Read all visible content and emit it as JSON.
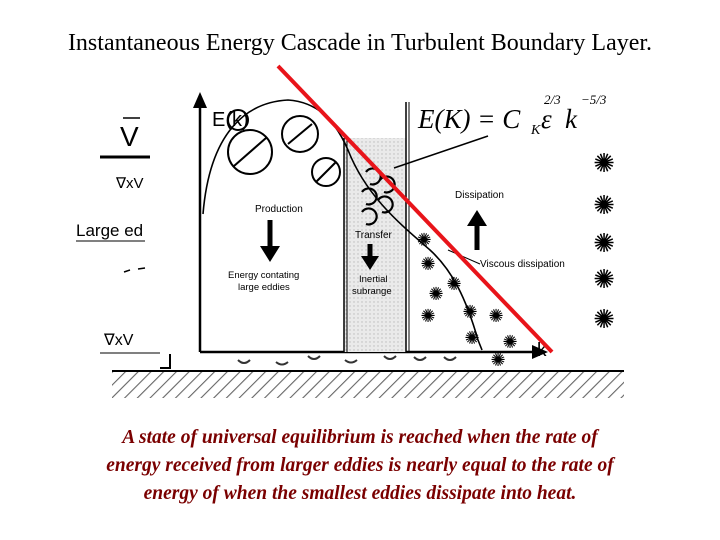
{
  "slide_title": "Instantaneous Energy Cascade in Turbulent Boundary Layer.",
  "diagram": {
    "y_axis_label": "E(k)",
    "x_axis_label": "k",
    "equation": {
      "lhs": "E(K) = C",
      "sub_k": "K",
      "epsilon": "ε",
      "eps_exponent": "2/3",
      "k_symbol": "k",
      "k_exponent": "−5/3"
    },
    "regions": {
      "production": "Production",
      "energy_containing_line1": "Energy contating",
      "energy_containing_line2": "large eddies",
      "transfer": "Transfer",
      "inertial_line1": "Inertial",
      "inertial_line2": "subrange",
      "dissipation": "Dissipation",
      "viscous_dissipation": "Viscous dissipation"
    },
    "left_fragments": {
      "vector_v": "V",
      "curl_v_top": "∇xV",
      "large_eddies": "Large ed",
      "curl_v_bottom": "∇xV"
    }
  },
  "caption": {
    "line1": "A state of universal equilibrium is reached when the rate of",
    "line2": "energy received from larger eddies is nearly equal to the rate of",
    "line3": "energy of when the smallest eddies dissipate into heat."
  },
  "colors": {
    "slope_line": "#e8141a",
    "caption_text": "#7a0000",
    "inertial_fill": "#e6e6e6",
    "ground_hatch": "#666666"
  }
}
